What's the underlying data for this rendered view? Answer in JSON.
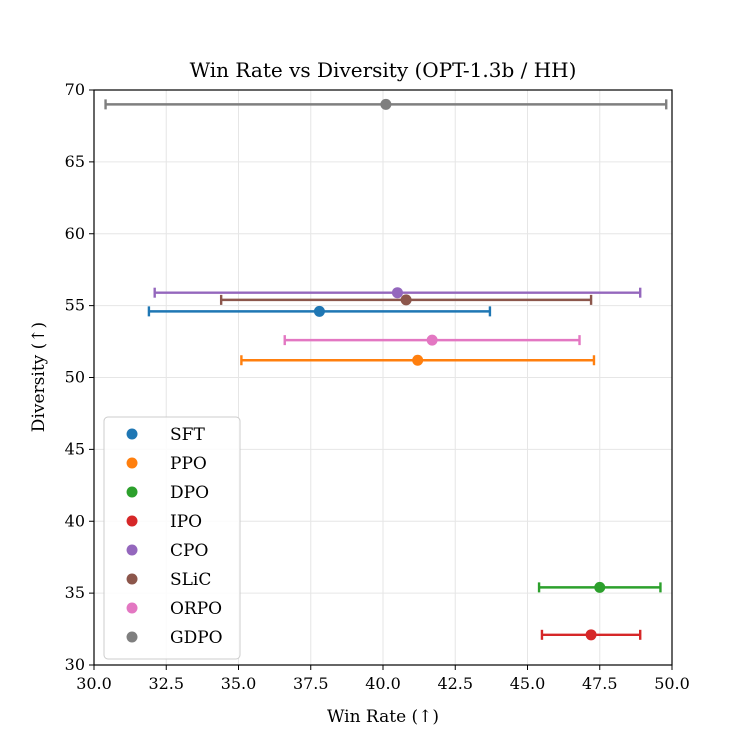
{
  "chart_data": {
    "type": "scatter",
    "title": "Win Rate vs Diversity (OPT-1.3b / HH)",
    "xlabel": "Win Rate (↑)",
    "ylabel": "Diversity (↑)",
    "xlim": [
      30,
      50
    ],
    "ylim": [
      30,
      70
    ],
    "xticks": [
      30.0,
      32.5,
      35.0,
      37.5,
      40.0,
      42.5,
      45.0,
      47.5,
      50.0
    ],
    "xtick_labels": [
      "30.0",
      "32.5",
      "35.0",
      "37.5",
      "40.0",
      "42.5",
      "45.0",
      "47.5",
      "50.0"
    ],
    "yticks": [
      30,
      35,
      40,
      45,
      50,
      55,
      60,
      65,
      70
    ],
    "ytick_labels": [
      "30",
      "35",
      "40",
      "45",
      "50",
      "55",
      "60",
      "65",
      "70"
    ],
    "grid": true,
    "legend_position": "lower-left",
    "error_bars": "horizontal",
    "series": [
      {
        "name": "SFT",
        "color": "#1f77b4",
        "x": 37.8,
        "y": 54.6,
        "xerr_low": 31.9,
        "xerr_high": 43.7
      },
      {
        "name": "PPO",
        "color": "#ff7f0e",
        "x": 41.2,
        "y": 51.2,
        "xerr_low": 35.1,
        "xerr_high": 47.3
      },
      {
        "name": "DPO",
        "color": "#2ca02c",
        "x": 47.5,
        "y": 35.4,
        "xerr_low": 45.4,
        "xerr_high": 49.6
      },
      {
        "name": "IPO",
        "color": "#d62728",
        "x": 47.2,
        "y": 32.1,
        "xerr_low": 45.5,
        "xerr_high": 48.9
      },
      {
        "name": "CPO",
        "color": "#9467bd",
        "x": 40.5,
        "y": 55.9,
        "xerr_low": 32.1,
        "xerr_high": 48.9
      },
      {
        "name": "SLiC",
        "color": "#8c564b",
        "x": 40.8,
        "y": 55.4,
        "xerr_low": 34.4,
        "xerr_high": 47.2
      },
      {
        "name": "ORPO",
        "color": "#e377c2",
        "x": 41.7,
        "y": 52.6,
        "xerr_low": 36.6,
        "xerr_high": 46.8
      },
      {
        "name": "GDPO",
        "color": "#7f7f7f",
        "x": 40.1,
        "y": 69.0,
        "xerr_low": 30.4,
        "xerr_high": 49.8
      }
    ]
  }
}
